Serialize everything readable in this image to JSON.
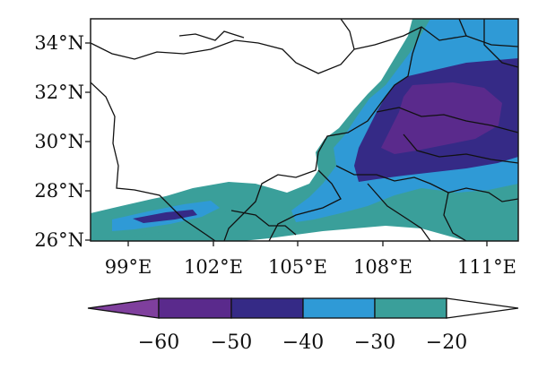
{
  "map": {
    "lat_labels": [
      "34°N",
      "32°N",
      "30°N",
      "28°N",
      "26°N"
    ],
    "lon_labels": [
      "99°E",
      "102°E",
      "105°E",
      "108°E",
      "111°E"
    ],
    "lon_range": [
      97.6,
      112.7
    ],
    "lat_range": [
      26.0,
      34.9
    ],
    "frame_color": "#1a1a1a",
    "boundary_color": "#111111"
  },
  "colorbar": {
    "tick_labels": [
      "−60",
      "−50",
      "−40",
      "−30",
      "−20"
    ],
    "bins": [
      {
        "range": "< -60",
        "color": "#7f3f9d"
      },
      {
        "range": "-60 to -50",
        "color": "#5a2a8c"
      },
      {
        "range": "-50 to -40",
        "color": "#352a86"
      },
      {
        "range": "-40 to -30",
        "color": "#2f9ad6"
      },
      {
        "range": "-30 to -20",
        "color": "#3a9f9a"
      },
      {
        "range": "> -20",
        "color": "#ffffff"
      }
    ],
    "extend": "both"
  }
}
